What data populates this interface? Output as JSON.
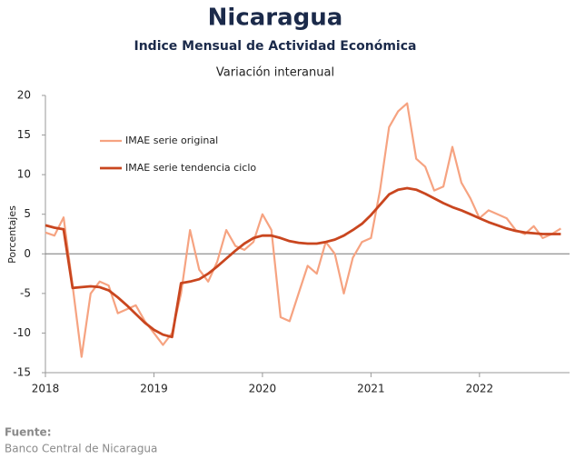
{
  "chart_data": {
    "type": "line",
    "title": "Nicaragua",
    "subtitle": "Indice Mensual de  Actividad Económica",
    "subtitle2": "Variación interanual",
    "ylabel": "Porcentajes",
    "source_label": "Fuente:",
    "source": "Banco Central de Nicaragua",
    "legend": "upper left",
    "xlim": [
      2018,
      2022.83
    ],
    "xticks": [
      2018,
      2019,
      2020,
      2021,
      2022
    ],
    "ylim": [
      -15,
      20
    ],
    "yticks": [
      -15,
      -10,
      -5,
      0,
      5,
      10,
      15,
      20
    ],
    "x": [
      2018,
      2018.083,
      2018.167,
      2018.25,
      2018.333,
      2018.417,
      2018.5,
      2018.583,
      2018.667,
      2018.75,
      2018.833,
      2018.917,
      2019,
      2019.083,
      2019.167,
      2019.25,
      2019.333,
      2019.417,
      2019.5,
      2019.583,
      2019.667,
      2019.75,
      2019.833,
      2019.917,
      2020,
      2020.083,
      2020.167,
      2020.25,
      2020.333,
      2020.417,
      2020.5,
      2020.583,
      2020.667,
      2020.75,
      2020.833,
      2020.917,
      2021,
      2021.083,
      2021.167,
      2021.25,
      2021.333,
      2021.417,
      2021.5,
      2021.583,
      2021.667,
      2021.75,
      2021.833,
      2021.917,
      2022,
      2022.083,
      2022.167,
      2022.25,
      2022.333,
      2022.417,
      2022.5,
      2022.583,
      2022.667,
      2022.75
    ],
    "series": [
      {
        "name": "IMAE serie original",
        "color": "#f6a381",
        "width": 2.2,
        "values": [
          2.7,
          2.3,
          4.6,
          -4,
          -13,
          -5,
          -3.5,
          -4,
          -7.5,
          -7,
          -6.5,
          -8.5,
          -10,
          -11.5,
          -10,
          -5,
          3,
          -2,
          -3.5,
          -1,
          3,
          1,
          0.5,
          1.5,
          5,
          3,
          -8,
          -8.5,
          -5,
          -1.5,
          -2.5,
          1.5,
          0,
          -5,
          -0.5,
          1.5,
          2,
          8,
          16,
          18,
          19,
          12,
          11,
          8,
          8.5,
          13.5,
          9,
          7,
          4.5,
          5.5,
          5,
          4.5,
          3,
          2.5,
          3.5,
          2,
          2.5,
          3.2
        ]
      },
      {
        "name": "IMAE serie  tendencia ciclo",
        "color": "#c9461f",
        "width": 2.8,
        "values": [
          3.6,
          3.3,
          3.1,
          -4.3,
          -4.2,
          -4.1,
          -4.2,
          -4.6,
          -5.5,
          -6.5,
          -7.6,
          -8.7,
          -9.6,
          -10.2,
          -10.5,
          -3.7,
          -3.5,
          -3.2,
          -2.5,
          -1.6,
          -0.6,
          0.4,
          1.3,
          2,
          2.3,
          2.3,
          2,
          1.6,
          1.4,
          1.3,
          1.3,
          1.5,
          1.8,
          2.3,
          3,
          3.8,
          4.9,
          6.2,
          7.5,
          8.1,
          8.3,
          8.1,
          7.6,
          7,
          6.4,
          5.9,
          5.5,
          5,
          4.5,
          4,
          3.6,
          3.2,
          2.9,
          2.7,
          2.6,
          2.5,
          2.5,
          2.5
        ]
      }
    ]
  }
}
